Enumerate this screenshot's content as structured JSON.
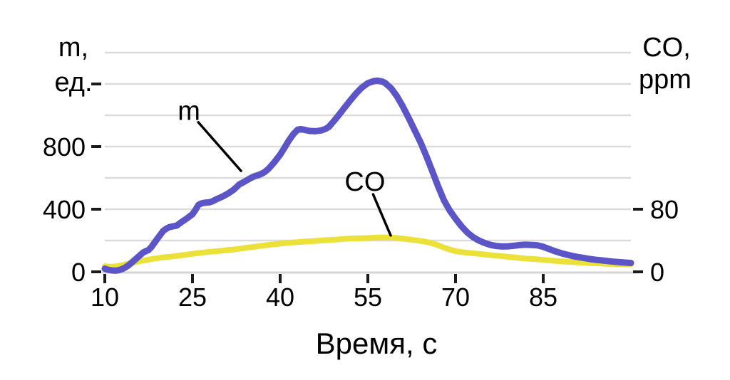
{
  "chart_data": {
    "type": "line",
    "title": "",
    "xlabel": "Время, с",
    "x_ticks": [
      10,
      25,
      40,
      55,
      70,
      85
    ],
    "x_range": [
      10,
      100
    ],
    "grid_step_left": 200,
    "grid_on": true,
    "left_axis": {
      "title_line1": "m,",
      "title_line2": "ед.",
      "tick_labels": [
        0,
        400,
        800
      ],
      "extra_unlabeled_tick": 1200,
      "range": [
        0,
        1400
      ]
    },
    "right_axis": {
      "title_line1": "CO,",
      "title_line2": "ppm",
      "tick_labels": [
        0,
        80
      ],
      "range": [
        0,
        280
      ]
    },
    "colors": {
      "m_line": "#5b55c8",
      "co_line": "#ebe138",
      "grid": "#dcdcdc",
      "axis_line": "#d4d4d4",
      "tick": "#1a1a1a",
      "text": "#000000",
      "background": "#ffffff"
    },
    "series": [
      {
        "name": "m",
        "axis": "left",
        "color": "#5b55c8",
        "stroke_width": 9,
        "points": [
          [
            10,
            20
          ],
          [
            10.5,
            14
          ],
          [
            11,
            10
          ],
          [
            11.5,
            8
          ],
          [
            12,
            8
          ],
          [
            12.5,
            12
          ],
          [
            13,
            18
          ],
          [
            13.5,
            28
          ],
          [
            14,
            40
          ],
          [
            15,
            72
          ],
          [
            16,
            105
          ],
          [
            16.5,
            122
          ],
          [
            17,
            132
          ],
          [
            17.5,
            140
          ],
          [
            18,
            160
          ],
          [
            19,
            212
          ],
          [
            20,
            262
          ],
          [
            20.5,
            275
          ],
          [
            21,
            285
          ],
          [
            21.7,
            291
          ],
          [
            22.3,
            295
          ],
          [
            23,
            315
          ],
          [
            24,
            340
          ],
          [
            25,
            368
          ],
          [
            25.5,
            395
          ],
          [
            26,
            427
          ],
          [
            26.5,
            437
          ],
          [
            27,
            441
          ],
          [
            28,
            445
          ],
          [
            28.5,
            452
          ],
          [
            29,
            462
          ],
          [
            30,
            478
          ],
          [
            31,
            498
          ],
          [
            32,
            523
          ],
          [
            32.5,
            540
          ],
          [
            33,
            558
          ],
          [
            34,
            578
          ],
          [
            35,
            600
          ],
          [
            35.7,
            612
          ],
          [
            36.3,
            618
          ],
          [
            37,
            630
          ],
          [
            37.5,
            642
          ],
          [
            38,
            658
          ],
          [
            39,
            700
          ],
          [
            40,
            748
          ],
          [
            40.7,
            790
          ],
          [
            41.5,
            840
          ],
          [
            42.3,
            882
          ],
          [
            43,
            908
          ],
          [
            43.5,
            912
          ],
          [
            44,
            908
          ],
          [
            45,
            900
          ],
          [
            46,
            898
          ],
          [
            47,
            903
          ],
          [
            47.7,
            912
          ],
          [
            48.3,
            925
          ],
          [
            49,
            955
          ],
          [
            50,
            1000
          ],
          [
            51,
            1048
          ],
          [
            52,
            1095
          ],
          [
            53,
            1140
          ],
          [
            54,
            1178
          ],
          [
            55,
            1205
          ],
          [
            56,
            1218
          ],
          [
            56.7,
            1221
          ],
          [
            57.5,
            1215
          ],
          [
            58,
            1205
          ],
          [
            59,
            1172
          ],
          [
            60,
            1120
          ],
          [
            61,
            1055
          ],
          [
            62,
            982
          ],
          [
            63,
            905
          ],
          [
            64,
            828
          ],
          [
            65,
            740
          ],
          [
            66,
            645
          ],
          [
            67,
            548
          ],
          [
            68,
            458
          ],
          [
            69,
            392
          ],
          [
            70,
            340
          ],
          [
            71,
            292
          ],
          [
            72,
            252
          ],
          [
            73,
            222
          ],
          [
            74,
            200
          ],
          [
            75,
            184
          ],
          [
            76,
            172
          ],
          [
            77,
            165
          ],
          [
            78,
            162
          ],
          [
            79,
            163
          ],
          [
            80,
            167
          ],
          [
            81,
            171
          ],
          [
            82,
            173
          ],
          [
            83,
            172
          ],
          [
            84,
            169
          ],
          [
            85,
            160
          ],
          [
            86,
            146
          ],
          [
            87,
            132
          ],
          [
            88,
            120
          ],
          [
            89,
            110
          ],
          [
            90,
            101
          ],
          [
            91,
            94
          ],
          [
            92,
            88
          ],
          [
            93,
            82
          ],
          [
            94,
            77
          ],
          [
            95,
            73
          ],
          [
            96,
            69
          ],
          [
            97,
            65
          ],
          [
            98,
            62
          ],
          [
            99,
            59
          ],
          [
            100,
            57
          ]
        ]
      },
      {
        "name": "CO",
        "axis": "right",
        "color": "#ebe138",
        "stroke_width": 8,
        "points": [
          [
            10,
            7
          ],
          [
            11,
            6.5
          ],
          [
            12,
            7
          ],
          [
            13,
            8.5
          ],
          [
            14,
            10.5
          ],
          [
            15,
            12
          ],
          [
            16,
            13.5
          ],
          [
            17,
            15
          ],
          [
            18,
            16.3
          ],
          [
            19,
            17.5
          ],
          [
            20,
            18.5
          ],
          [
            21,
            19.3
          ],
          [
            22,
            20
          ],
          [
            23,
            21
          ],
          [
            24,
            22
          ],
          [
            25,
            23
          ],
          [
            26,
            24
          ],
          [
            27,
            24.8
          ],
          [
            28,
            25.6
          ],
          [
            29,
            26.3
          ],
          [
            30,
            27
          ],
          [
            31,
            27.8
          ],
          [
            32,
            28.5
          ],
          [
            33,
            29.5
          ],
          [
            34,
            30.5
          ],
          [
            35,
            31.5
          ],
          [
            36,
            32.5
          ],
          [
            37,
            33.5
          ],
          [
            38,
            34.5
          ],
          [
            39,
            35.3
          ],
          [
            40,
            36
          ],
          [
            41,
            36.8
          ],
          [
            42,
            37.5
          ],
          [
            43,
            38
          ],
          [
            44,
            38.5
          ],
          [
            45,
            39
          ],
          [
            46,
            39.5
          ],
          [
            47,
            40
          ],
          [
            48,
            40.5
          ],
          [
            49,
            41
          ],
          [
            50,
            41.5
          ],
          [
            51,
            42
          ],
          [
            52,
            42.5
          ],
          [
            53,
            42.8
          ],
          [
            54,
            43
          ],
          [
            55,
            43.2
          ],
          [
            56,
            43.5
          ],
          [
            57,
            43.8
          ],
          [
            58,
            44
          ],
          [
            59,
            44
          ],
          [
            60,
            43.2
          ],
          [
            61,
            42.4
          ],
          [
            62,
            41.5
          ],
          [
            63,
            40.5
          ],
          [
            64,
            39.5
          ],
          [
            65,
            38.3
          ],
          [
            66,
            36.5
          ],
          [
            67,
            34
          ],
          [
            68,
            31
          ],
          [
            69,
            28.5
          ],
          [
            70,
            26.5
          ],
          [
            71,
            25.3
          ],
          [
            72,
            24.4
          ],
          [
            73,
            23.7
          ],
          [
            74,
            23
          ],
          [
            75,
            22.2
          ],
          [
            76,
            21.4
          ],
          [
            77,
            20.7
          ],
          [
            78,
            20
          ],
          [
            79,
            19.2
          ],
          [
            80,
            18.5
          ],
          [
            81,
            17.7
          ],
          [
            82,
            17
          ],
          [
            83,
            16.5
          ],
          [
            84,
            16
          ],
          [
            85,
            15.3
          ],
          [
            86,
            14.6
          ],
          [
            87,
            14
          ],
          [
            88,
            13.5
          ],
          [
            89,
            13
          ],
          [
            90,
            12.5
          ],
          [
            91,
            12
          ],
          [
            92,
            11.6
          ],
          [
            93,
            11.2
          ],
          [
            94,
            10.9
          ],
          [
            95,
            10.6
          ],
          [
            96,
            10.3
          ],
          [
            97,
            10.1
          ],
          [
            98,
            9.9
          ],
          [
            99,
            9.7
          ],
          [
            100,
            9.5
          ]
        ]
      }
    ],
    "annotations": [
      {
        "label": "m",
        "axis": "left",
        "label_at": {
          "t": 24.4,
          "v": 1030
        },
        "line_from": {
          "t": 26.0,
          "v": 955
        },
        "line_to": {
          "t": 33.3,
          "v": 645
        }
      },
      {
        "label": "CO",
        "axis": "right",
        "label_at": {
          "t": 54.5,
          "v": 115.5
        },
        "line_from": {
          "t": 55.9,
          "v": 99
        },
        "line_to": {
          "t": 58.9,
          "v": 46.5
        }
      }
    ]
  }
}
